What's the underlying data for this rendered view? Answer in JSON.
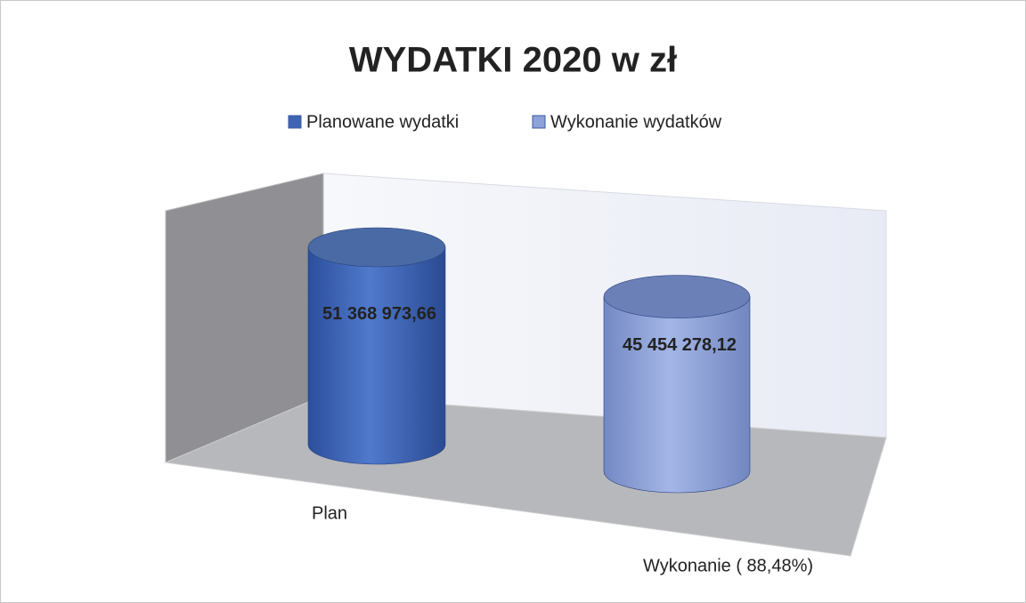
{
  "chart_data": {
    "type": "bar3d-cylinder",
    "title": "WYDATKI 2020 w zł",
    "categories": [
      "Plan",
      "Wykonanie ( 88,48%)"
    ],
    "series": [
      {
        "name": "Planowane wydatki",
        "color": "#3f64b4",
        "values": [
          51368973.66,
          null
        ],
        "value_labels": [
          "51 368 973,66",
          null
        ]
      },
      {
        "name": "Wykonanie wydatków",
        "color": "#8ea2d8",
        "values": [
          null,
          45454278.12
        ],
        "value_labels": [
          null,
          "45 454 278,12"
        ]
      }
    ]
  }
}
